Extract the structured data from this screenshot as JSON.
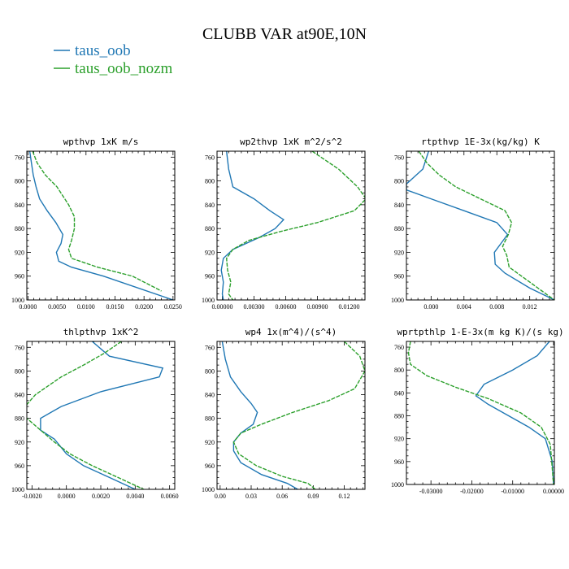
{
  "figure": {
    "title": "CLUBB VAR at90E,10N",
    "legend": [
      {
        "label": "taus_oob",
        "color": "#1f77b4"
      },
      {
        "label": "taus_oob_nozm",
        "color": "#2ca02c"
      }
    ]
  },
  "chart_data": [
    {
      "type": "line",
      "title": "wpthvp   1xK m/s",
      "xlim": [
        -0.0002,
        0.0253
      ],
      "ylim": [
        1000,
        750
      ],
      "xticks": [
        0,
        0.005,
        0.01,
        0.015,
        0.02,
        0.025
      ],
      "xticklabels": [
        "0.0000",
        "0.0050",
        "0.0100",
        "0.0150",
        "0.0200",
        "0.0250"
      ],
      "yticks": [
        760,
        800,
        840,
        880,
        920,
        960,
        1000
      ],
      "series": [
        {
          "name": "taus_oob",
          "color": "#1f77b4",
          "x": [
            0.0003,
            0.0006,
            0.0009,
            0.0014,
            0.002,
            0.0033,
            0.0048,
            0.006,
            0.0057,
            0.0049,
            0.0053,
            0.0075,
            0.013,
            0.025
          ],
          "y": [
            750,
            770,
            790,
            810,
            830,
            850,
            870,
            890,
            905,
            920,
            935,
            945,
            960,
            1000
          ]
        },
        {
          "name": "taus_oob_nozm",
          "color": "#2ca02c",
          "x": [
            0.0008,
            0.0016,
            0.003,
            0.005,
            0.007,
            0.008,
            0.008,
            0.0075,
            0.007,
            0.0075,
            0.012,
            0.018,
            0.023
          ],
          "y": [
            750,
            770,
            790,
            810,
            840,
            860,
            880,
            900,
            915,
            930,
            945,
            960,
            985
          ]
        }
      ]
    },
    {
      "type": "line",
      "title": "wp2thvp   1xK m^2/s^2",
      "xlim": [
        -0.0005,
        0.0135
      ],
      "ylim": [
        1000,
        750
      ],
      "xticks": [
        0,
        0.003,
        0.006,
        0.009,
        0.012
      ],
      "xticklabels": [
        "0.00000",
        "0.00300",
        "0.00600",
        "0.00900",
        "0.01200"
      ],
      "yticks": [
        760,
        800,
        840,
        880,
        920,
        960,
        1000
      ],
      "series": [
        {
          "name": "taus_oob",
          "color": "#1f77b4",
          "x": [
            0.0004,
            0.0006,
            0.001,
            0.003,
            0.0045,
            0.0058,
            0.005,
            0.0035,
            0.001,
            0.0001,
            -0.0001,
            0.0001,
            0.0,
            0.0001
          ],
          "y": [
            750,
            780,
            810,
            830,
            850,
            865,
            880,
            895,
            915,
            930,
            950,
            970,
            990,
            1000
          ]
        },
        {
          "name": "taus_oob_nozm",
          "color": "#2ca02c",
          "x": [
            0.0085,
            0.011,
            0.0128,
            0.0136,
            0.0125,
            0.009,
            0.0055,
            0.0025,
            0.001,
            0.0004,
            0.0005,
            0.0008,
            0.0006,
            0.001
          ],
          "y": [
            750,
            780,
            810,
            830,
            850,
            870,
            885,
            900,
            915,
            930,
            950,
            970,
            990,
            1000
          ]
        }
      ]
    },
    {
      "type": "line",
      "title": "rtpthvp   1E-3x(kg/kg) K",
      "xlim": [
        -0.003,
        0.015
      ],
      "ylim": [
        1000,
        750
      ],
      "xticks": [
        0,
        0.004,
        0.008,
        0.012
      ],
      "xticklabels": [
        "0.000",
        "0.004",
        "0.008",
        "0.012"
      ],
      "yticks": [
        760,
        800,
        840,
        880,
        920,
        960,
        1000
      ],
      "series": [
        {
          "name": "taus_oob",
          "color": "#1f77b4",
          "x": [
            -0.0003,
            -0.001,
            -0.003,
            -0.003,
            0.0,
            0.004,
            0.008,
            0.0093,
            0.0085,
            0.0077,
            0.0078,
            0.009,
            0.012,
            0.015
          ],
          "y": [
            750,
            780,
            805,
            815,
            830,
            850,
            870,
            890,
            905,
            920,
            940,
            955,
            980,
            1000
          ]
        },
        {
          "name": "taus_oob_nozm",
          "color": "#2ca02c",
          "x": [
            -0.0015,
            -0.0005,
            0.001,
            0.003,
            0.006,
            0.009,
            0.0098,
            0.0094,
            0.0087,
            0.0092,
            0.0095,
            0.011,
            0.0135,
            0.015
          ],
          "y": [
            750,
            770,
            790,
            810,
            830,
            850,
            870,
            890,
            910,
            925,
            945,
            960,
            985,
            1000
          ]
        }
      ]
    },
    {
      "type": "line",
      "title": "thlpthvp   1xK^2",
      "xlim": [
        -0.0023,
        0.0063
      ],
      "ylim": [
        1000,
        750
      ],
      "xticks": [
        -0.002,
        0,
        0.002,
        0.004,
        0.006
      ],
      "xticklabels": [
        "-0.0020",
        "0.0000",
        "0.0020",
        "0.0040",
        "0.0060"
      ],
      "yticks": [
        760,
        800,
        840,
        880,
        920,
        960,
        1000
      ],
      "series": [
        {
          "name": "taus_oob",
          "color": "#1f77b4",
          "x": [
            0.0015,
            0.0025,
            0.0056,
            0.0054,
            0.002,
            -0.0003,
            -0.0015,
            -0.0015,
            -0.0007,
            0.0,
            0.001,
            0.0025,
            0.004
          ],
          "y": [
            750,
            775,
            795,
            810,
            835,
            860,
            880,
            900,
            915,
            940,
            960,
            980,
            1000
          ]
        },
        {
          "name": "taus_oob_nozm",
          "color": "#2ca02c",
          "x": [
            0.0032,
            0.0022,
            0.001,
            -0.0003,
            -0.0018,
            -0.0024,
            -0.0023,
            -0.0015,
            -0.0007,
            0.0002,
            0.0015,
            0.003,
            0.0045
          ],
          "y": [
            750,
            770,
            790,
            810,
            840,
            860,
            880,
            900,
            920,
            940,
            960,
            980,
            1000
          ]
        }
      ]
    },
    {
      "type": "line",
      "title": "wp4   1x(m^4)/(s^4)",
      "xlim": [
        -0.003,
        0.14
      ],
      "ylim": [
        1000,
        750
      ],
      "xticks": [
        0,
        0.03,
        0.06,
        0.09,
        0.12
      ],
      "xticklabels": [
        "0.00",
        "0.03",
        "0.06",
        "0.09",
        "0.12"
      ],
      "yticks": [
        760,
        800,
        840,
        880,
        920,
        960,
        1000
      ],
      "series": [
        {
          "name": "taus_oob",
          "color": "#1f77b4",
          "x": [
            0.002,
            0.005,
            0.01,
            0.02,
            0.03,
            0.036,
            0.032,
            0.02,
            0.013,
            0.013,
            0.02,
            0.04,
            0.065,
            0.075
          ],
          "y": [
            750,
            780,
            810,
            835,
            855,
            870,
            890,
            905,
            920,
            935,
            955,
            975,
            990,
            1000
          ]
        },
        {
          "name": "taus_oob_nozm",
          "color": "#2ca02c",
          "x": [
            0.12,
            0.135,
            0.14,
            0.13,
            0.105,
            0.07,
            0.04,
            0.02,
            0.013,
            0.018,
            0.035,
            0.06,
            0.085,
            0.092
          ],
          "y": [
            750,
            775,
            800,
            830,
            850,
            870,
            890,
            905,
            920,
            940,
            960,
            978,
            990,
            1000
          ]
        }
      ]
    },
    {
      "type": "line",
      "title": "wprtpthlp   1-E-3x(m kg K)/(s kg)",
      "xlim": [
        -0.036,
        0.0002
      ],
      "ylim": [
        1000,
        750
      ],
      "xticks": [
        -0.03,
        -0.02,
        -0.01,
        0
      ],
      "xticklabels": [
        "-0.03000",
        "-0.02000",
        "-0.01000",
        "0.00000"
      ],
      "yticks": [
        760,
        800,
        840,
        880,
        920,
        960,
        1000
      ],
      "series": [
        {
          "name": "taus_oob",
          "color": "#1f77b4",
          "x": [
            -0.001,
            -0.004,
            -0.01,
            -0.017,
            -0.019,
            -0.016,
            -0.011,
            -0.006,
            -0.002,
            -0.0003,
            0.0
          ],
          "y": [
            750,
            775,
            800,
            825,
            845,
            860,
            880,
            900,
            920,
            960,
            1000
          ]
        },
        {
          "name": "taus_oob_nozm",
          "color": "#2ca02c",
          "x": [
            -0.035,
            -0.0355,
            -0.035,
            -0.031,
            -0.024,
            -0.016,
            -0.008,
            -0.003,
            -0.0008,
            0.0
          ],
          "y": [
            750,
            770,
            790,
            810,
            830,
            850,
            875,
            900,
            930,
            1000
          ]
        }
      ]
    }
  ]
}
